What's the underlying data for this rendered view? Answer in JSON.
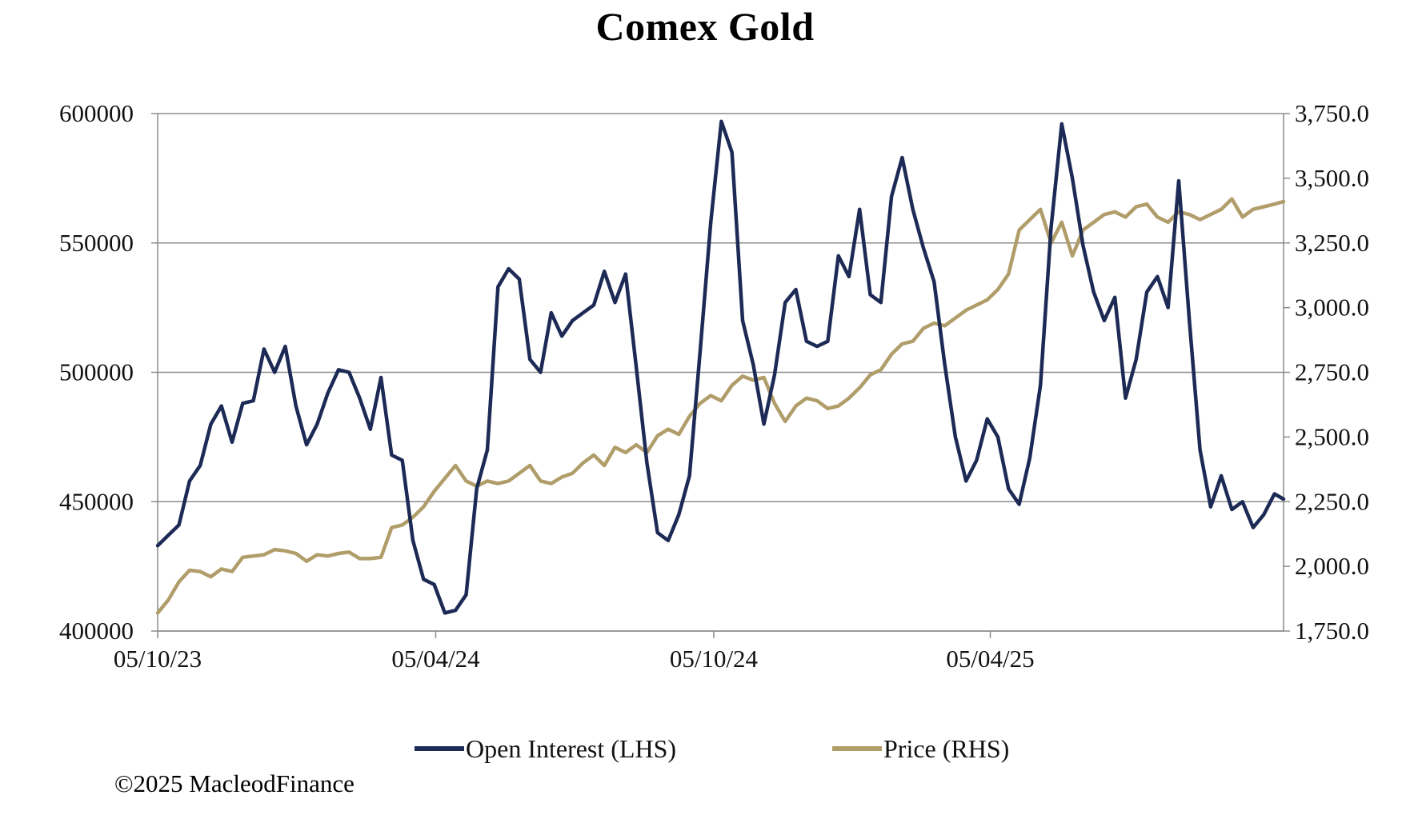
{
  "colors": {
    "open_interest": "#1c2a55",
    "price": "#b09d6a",
    "grid": "#8c8c8c",
    "axis": "#8c8c8c"
  },
  "copyright": "©2025 MacleodFinance",
  "chart_data": {
    "type": "line",
    "title": "Comex Gold",
    "xlabel": "",
    "ylabel": "",
    "grid": "horizontal",
    "legend_position": "bottom",
    "x_start": "2023-10-05",
    "x_end": "2025-10-15",
    "x_ticks": [
      {
        "date": "2023-10-05",
        "label": "05/10/23"
      },
      {
        "date": "2024-04-05",
        "label": "05/04/24"
      },
      {
        "date": "2024-10-05",
        "label": "05/10/24"
      },
      {
        "date": "2025-04-05",
        "label": "05/04/25"
      }
    ],
    "y_left": {
      "min": 400000,
      "max": 600000,
      "ticks": [
        "400000",
        "450000",
        "500000",
        "550000",
        "600000"
      ],
      "tick_values": [
        400000,
        450000,
        500000,
        550000,
        600000
      ]
    },
    "y_right": {
      "min": 1750,
      "max": 3750,
      "ticks": [
        "1,750.0",
        "2,000.0",
        "2,250.0",
        "2,500.0",
        "2,750.0",
        "3,000.0",
        "3,250.0",
        "3,500.0",
        "3,750.0"
      ],
      "tick_values": [
        1750,
        2000,
        2250,
        2500,
        2750,
        3000,
        3250,
        3500,
        3750
      ]
    },
    "series": [
      {
        "name": "Open Interest (LHS)",
        "axis": "left",
        "x": [
          "2023-10-05",
          "2023-10-12",
          "2023-10-19",
          "2023-10-26",
          "2023-11-02",
          "2023-11-09",
          "2023-11-16",
          "2023-11-23",
          "2023-11-30",
          "2023-12-07",
          "2023-12-14",
          "2023-12-21",
          "2023-12-28",
          "2024-01-04",
          "2024-01-11",
          "2024-01-18",
          "2024-01-25",
          "2024-02-01",
          "2024-02-08",
          "2024-02-15",
          "2024-02-22",
          "2024-02-29",
          "2024-03-07",
          "2024-03-14",
          "2024-03-21",
          "2024-03-28",
          "2024-04-04",
          "2024-04-11",
          "2024-04-18",
          "2024-04-25",
          "2024-05-02",
          "2024-05-09",
          "2024-05-16",
          "2024-05-23",
          "2024-05-30",
          "2024-06-06",
          "2024-06-13",
          "2024-06-20",
          "2024-06-27",
          "2024-07-04",
          "2024-07-11",
          "2024-07-18",
          "2024-07-25",
          "2024-08-01",
          "2024-08-08",
          "2024-08-15",
          "2024-08-22",
          "2024-08-29",
          "2024-09-05",
          "2024-09-12",
          "2024-09-19",
          "2024-09-26",
          "2024-10-03",
          "2024-10-10",
          "2024-10-17",
          "2024-10-24",
          "2024-10-31",
          "2024-11-07",
          "2024-11-14",
          "2024-11-21",
          "2024-11-28",
          "2024-12-05",
          "2024-12-12",
          "2024-12-19",
          "2024-12-26",
          "2025-01-02",
          "2025-01-09",
          "2025-01-16",
          "2025-01-23",
          "2025-01-30",
          "2025-02-06",
          "2025-02-13",
          "2025-02-20",
          "2025-02-27",
          "2025-03-06",
          "2025-03-13",
          "2025-03-20",
          "2025-03-27",
          "2025-04-03",
          "2025-04-10",
          "2025-04-17",
          "2025-04-24",
          "2025-05-01",
          "2025-05-08",
          "2025-05-15",
          "2025-05-22",
          "2025-05-29",
          "2025-06-05",
          "2025-06-12",
          "2025-06-19",
          "2025-06-26",
          "2025-07-03",
          "2025-07-10",
          "2025-07-17",
          "2025-07-24",
          "2025-07-31",
          "2025-08-07",
          "2025-08-14",
          "2025-08-21",
          "2025-08-28",
          "2025-09-04",
          "2025-09-11",
          "2025-09-18",
          "2025-09-25",
          "2025-10-02",
          "2025-10-09",
          "2025-10-15"
        ],
        "values": [
          433000,
          437000,
          441000,
          458000,
          464000,
          480000,
          487000,
          473000,
          488000,
          489000,
          509000,
          500000,
          510000,
          487000,
          472000,
          480000,
          492000,
          501000,
          500000,
          490000,
          478000,
          498000,
          468000,
          466000,
          435000,
          420000,
          418000,
          407000,
          408000,
          414000,
          455000,
          470000,
          533000,
          540000,
          536000,
          505000,
          500000,
          523000,
          514000,
          520000,
          523000,
          526000,
          539000,
          527000,
          538000,
          502000,
          465000,
          438000,
          435000,
          445000,
          460000,
          508000,
          558000,
          597000,
          585000,
          520000,
          503000,
          480000,
          499000,
          527000,
          532000,
          512000,
          510000,
          512000,
          545000,
          537000,
          563000,
          530000,
          527000,
          568000,
          583000,
          563000,
          548000,
          535000,
          503000,
          475000,
          458000,
          466000,
          482000,
          475000,
          455000,
          449000,
          467000,
          495000,
          556000,
          596000,
          575000,
          549000,
          531000,
          520000,
          529000,
          490000,
          505000,
          531000,
          537000,
          525000,
          574000,
          520000,
          470000,
          448000,
          460000,
          447000,
          450000,
          440000,
          445000,
          453000,
          451000
        ],
        "values_note": ""
      },
      {
        "name": "Price (RHS)",
        "axis": "right",
        "x": [],
        "values": []
      }
    ]
  }
}
